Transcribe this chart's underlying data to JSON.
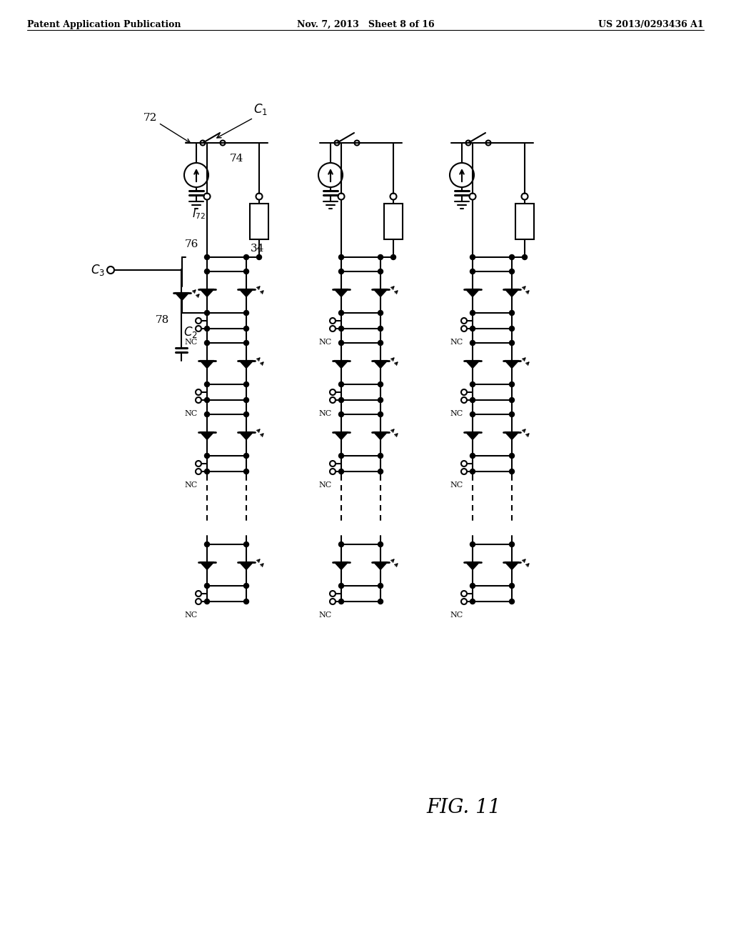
{
  "bg_color": "#ffffff",
  "header_left": "Patent Application Publication",
  "header_center": "Nov. 7, 2013   Sheet 8 of 16",
  "header_right": "US 2013/0293436 A1",
  "fig_label": "FIG. 11"
}
